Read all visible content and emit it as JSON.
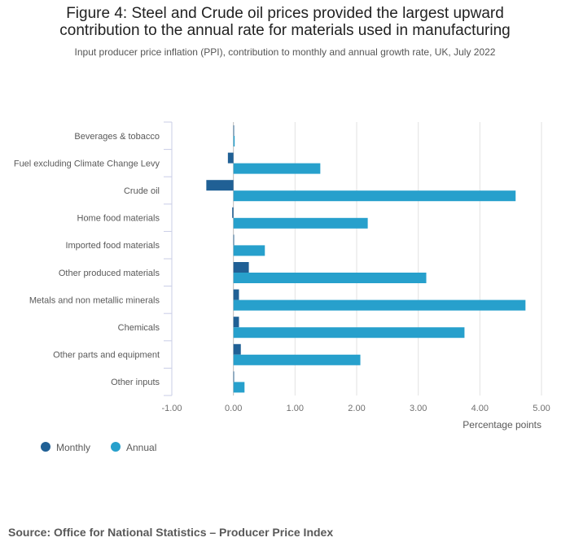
{
  "chart_data": {
    "type": "bar",
    "orientation": "horizontal",
    "title": "Figure 4: Steel and Crude oil prices provided the largest upward contribution to the annual rate for materials used in manufacturing",
    "title_lines": [
      "Figure 4: Steel and Crude oil prices provided the largest upward",
      "contribution to the annual rate for materials used in manufacturing"
    ],
    "subtitle": "Input producer price inflation (PPI), contribution to monthly and annual growth rate, UK, July 2022",
    "xlabel": "Percentage points",
    "xlim": [
      -1.0,
      5.0
    ],
    "xticks": [
      "-1.00",
      "0.00",
      "1.00",
      "2.00",
      "3.00",
      "4.00",
      "5.00"
    ],
    "grid": true,
    "legend_position": "bottom-left",
    "categories": [
      "Beverages & tobacco",
      "Fuel excluding Climate Change Levy",
      "Crude oil",
      "Home food materials",
      "Imported food materials",
      "Other produced materials",
      "Metals and non metallic minerals",
      "Chemicals",
      "Other parts and equipment",
      "Other inputs"
    ],
    "series": [
      {
        "name": "Monthly",
        "color": "#206095",
        "values": [
          0.0,
          -0.09,
          -0.44,
          -0.02,
          0.01,
          0.25,
          0.09,
          0.09,
          0.12,
          0.0
        ]
      },
      {
        "name": "Annual",
        "color": "#27a0cc",
        "values": [
          0.02,
          1.41,
          4.58,
          2.18,
          0.51,
          3.13,
          4.74,
          3.75,
          2.06,
          0.18
        ]
      }
    ]
  },
  "source": "Source: Office for National Statistics – Producer Price Index"
}
